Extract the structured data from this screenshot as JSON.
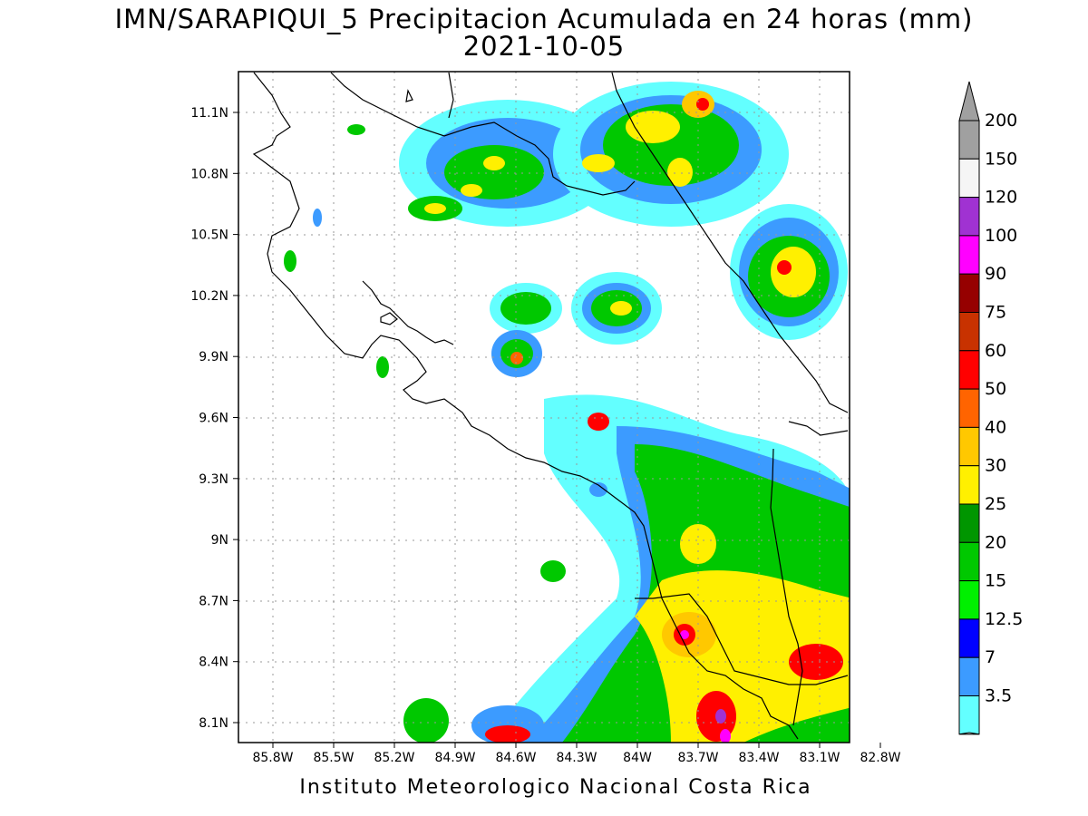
{
  "title": "IMN/SARAPIQUI_5 Precipitacion Acumulada en 24 horas (mm)",
  "subtitle": "2021-10-05",
  "footer": "Instituto Meteorologico Nacional Costa Rica",
  "map": {
    "x_ticks": [
      "85.8W",
      "85.5W",
      "85.2W",
      "84.9W",
      "84.6W",
      "84.3W",
      "84W",
      "83.7W",
      "83.4W",
      "83.1W",
      "82.8W"
    ],
    "y_ticks": [
      "11.1N",
      "10.8N",
      "10.5N",
      "10.2N",
      "9.9N",
      "9.6N",
      "9.3N",
      "9N",
      "8.7N",
      "8.4N",
      "8.1N"
    ],
    "lon_range": [
      -86.0,
      -83.0
    ],
    "lat_range": [
      8.0,
      11.2
    ],
    "grid": true
  },
  "legend": {
    "levels": [
      "200",
      "150",
      "120",
      "100",
      "90",
      "75",
      "60",
      "50",
      "40",
      "30",
      "25",
      "20",
      "15",
      "12.5",
      "7",
      "3.5"
    ],
    "colors": {
      "3.5": "#63ffff",
      "7": "#3c9bff",
      "12.5": "#0000ff",
      "15": "#00f000",
      "20": "#00c800",
      "25": "#009600",
      "30": "#fff000",
      "40": "#ffc800",
      "50": "#ff6400",
      "60": "#ff0000",
      "75": "#c83200",
      "90": "#960000",
      "100": "#ff00ff",
      "120": "#a032d2",
      "150": "#f5f5f5",
      "200": "#a0a0a0"
    }
  }
}
